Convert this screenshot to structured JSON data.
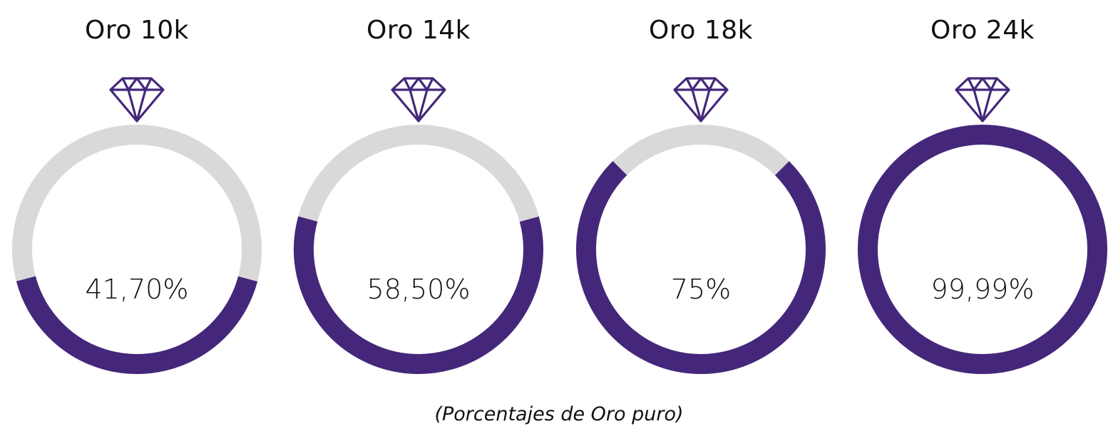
{
  "colors": {
    "accent": "#44277a",
    "track": "#d9d9d9"
  },
  "items": [
    {
      "title": "Oro 10k",
      "value_label": "41,70%",
      "value": 41.7,
      "icon": "diamond-icon"
    },
    {
      "title": "Oro 14k",
      "value_label": "58,50%",
      "value": 58.5,
      "icon": "diamond-icon"
    },
    {
      "title": "Oro 18k",
      "value_label": "75%",
      "value": 75,
      "icon": "diamond-icon"
    },
    {
      "title": "Oro 24k",
      "value_label": "99,99%",
      "value": 99.99,
      "icon": "diamond-icon"
    }
  ],
  "caption": "(Porcentajes de Oro puro)",
  "chart_data": {
    "type": "pie",
    "subtype": "donut-gauge",
    "categories": [
      "Oro 10k",
      "Oro 14k",
      "Oro 18k",
      "Oro 24k"
    ],
    "values": [
      41.7,
      58.5,
      75,
      99.99
    ],
    "value_labels": [
      "41,70%",
      "58,50%",
      "75%",
      "99,99%"
    ],
    "title": "",
    "caption": "(Porcentajes de Oro puro)",
    "unit": "%",
    "range": [
      0,
      100
    ],
    "fill_color": "#44277a",
    "track_color": "#d9d9d9",
    "fill_anchor": "bottom-centered",
    "legend": "none"
  }
}
